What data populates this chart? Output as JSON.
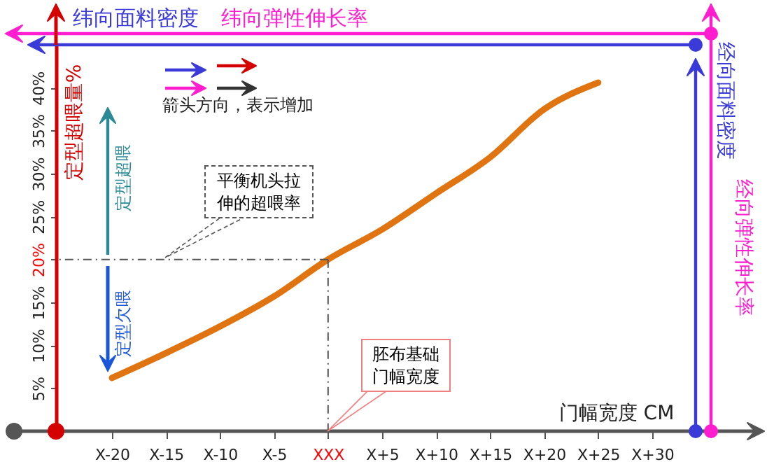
{
  "chart_data": {
    "type": "line",
    "xlabel": "门幅宽度 CM",
    "ylabel": "定型超喂量%",
    "categories": [
      "X-20",
      "X-15",
      "X-10",
      "X-5",
      "XXX",
      "X+5",
      "X+10",
      "X+15",
      "X+20",
      "X+25",
      "X+30"
    ],
    "series": [
      {
        "color": "#e07410",
        "values": [
          6.2,
          9.1,
          12.2,
          15.7,
          20,
          23.5,
          27.7,
          31.9,
          37.5,
          40.6,
          null
        ]
      }
    ],
    "ylim": [
      0,
      45
    ],
    "yticks": [
      {
        "value": 5,
        "label": "5%"
      },
      {
        "value": 10,
        "label": "10%"
      },
      {
        "value": 15,
        "label": "15%"
      },
      {
        "value": 20,
        "label": "20%"
      },
      {
        "value": 25,
        "label": "25%"
      },
      {
        "value": 30,
        "label": "30%"
      },
      {
        "value": 35,
        "label": "35%"
      },
      {
        "value": 40,
        "label": "40%"
      }
    ],
    "ref_lines": [
      {
        "axis": "y",
        "value": 20,
        "label": "平衡机头拉伸的超喂率",
        "line_style": "dashdot"
      },
      {
        "axis": "x",
        "value": "XXX",
        "label": "胚布基础门幅宽度",
        "line_style": "dashdot"
      }
    ],
    "annotations": [
      "纬向面料密度",
      "纬向弹性伸长率",
      "箭头方向，表示增加",
      "定型超喂",
      "定型欠喂",
      "经向面料密度",
      "经向弹性伸长率"
    ],
    "grid": false,
    "marker": "none",
    "line_style": "solid"
  }
}
